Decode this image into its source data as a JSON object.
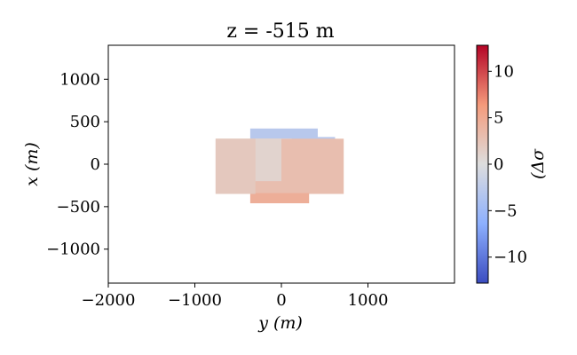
{
  "chart_data": {
    "type": "heatmap",
    "title": "z = -515 m",
    "xlabel": "y (m)",
    "ylabel": "x (m)",
    "xlim": [
      -2000,
      2000
    ],
    "ylim": [
      -1400,
      1400
    ],
    "xticks": [
      "−2000",
      "−1000",
      "0",
      "1000"
    ],
    "xtick_values": [
      -2000,
      -1000,
      0,
      1000
    ],
    "yticks": [
      "1000",
      "500",
      "0",
      "−500",
      "−1000"
    ],
    "ytick_values": [
      1000,
      500,
      0,
      -500,
      -1000
    ],
    "colorbar": {
      "label": "(Δσ",
      "range": [
        -12.8,
        12.8
      ],
      "ticks": [
        "10",
        "5",
        "0",
        "−5",
        "−10"
      ],
      "tick_values": [
        10,
        5,
        0,
        -5,
        -10
      ],
      "colormap": "coolwarm"
    },
    "regions": [
      {
        "y_range": [
          -360,
          420
        ],
        "x_range": [
          300,
          420
        ],
        "value": -3.0
      },
      {
        "y_range": [
          120,
          620
        ],
        "x_range": [
          240,
          320
        ],
        "value": -3.0
      },
      {
        "y_range": [
          -760,
          720
        ],
        "x_range": [
          -350,
          300
        ],
        "value": 3.0
      },
      {
        "y_range": [
          -360,
          320
        ],
        "x_range": [
          -460,
          -340
        ],
        "value": 4.5
      },
      {
        "y_range": [
          -760,
          -300
        ],
        "x_range": [
          -350,
          300
        ],
        "value": 2.0
      },
      {
        "y_range": [
          -300,
          0
        ],
        "x_range": [
          -200,
          300
        ],
        "value": 1.0
      }
    ]
  }
}
